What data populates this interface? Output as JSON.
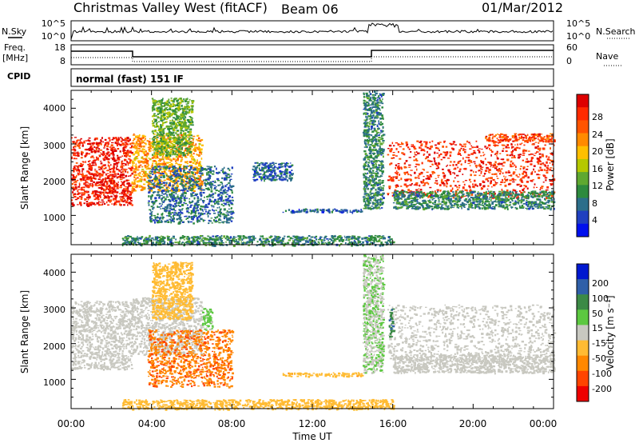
{
  "header": {
    "station": "Christmas Valley West (fitACF)",
    "beam": "Beam 06",
    "date": "01/Mar/2012"
  },
  "nsky": {
    "left_label": "N.Sky",
    "left_ticks": [
      "10^5",
      "10^0"
    ],
    "right_ticks": [
      "10^5",
      "10^0"
    ],
    "right_label": "N.Search"
  },
  "freq": {
    "left_label_line1": "Freq.",
    "left_label_line2": "[MHz]",
    "left_ticks": [
      "18",
      "8"
    ],
    "right_ticks": [
      "60",
      "0"
    ],
    "right_label": "Nave"
  },
  "cpid": {
    "label": "CPID",
    "mode": "normal (fast) 151 IF"
  },
  "power_colorbar": {
    "label": "Power [dB]",
    "ticks": [
      "28",
      "24",
      "20",
      "16",
      "12",
      "8",
      "4"
    ],
    "colors": [
      "#dd0000",
      "#ff2a00",
      "#ff5400",
      "#ff8a00",
      "#ffbf00",
      "#b5c800",
      "#5fa830",
      "#2e8a3e",
      "#2c6e8a",
      "#2040c0",
      "#0010ee"
    ]
  },
  "velocity_colorbar": {
    "label": "Velocity [m s⁻¹]",
    "ticks": [
      "200",
      "100",
      "50",
      "15",
      "-15",
      "-50",
      "-100",
      "-200"
    ],
    "colors": [
      "#0018d0",
      "#2f5fa8",
      "#3c8a46",
      "#5cc840",
      "#c8c8c0",
      "#ffbb33",
      "#ff8800",
      "#ff4400",
      "#ee0000"
    ]
  },
  "axes": {
    "ylabel": "Slant Range [km]",
    "xlabel": "Time UT",
    "yticks": [
      "4000",
      "3000",
      "2000",
      "1000"
    ],
    "xticks": [
      "00:00",
      "04:00",
      "08:00",
      "12:00",
      "16:00",
      "20:00",
      "00:00"
    ]
  },
  "chart_data": [
    {
      "type": "heatmap",
      "title": "Power",
      "xlabel": "Time UT",
      "ylabel": "Slant Range [km]",
      "x_range_hours": [
        0,
        24
      ],
      "y_range_km": [
        180,
        4500
      ],
      "color_label": "Power [dB]",
      "color_range": [
        0,
        30
      ],
      "regions": [
        {
          "t": [
            0.0,
            3.0
          ],
          "r": [
            1300,
            3200
          ],
          "power": 28
        },
        {
          "t": [
            3.0,
            6.5
          ],
          "r": [
            1700,
            3300
          ],
          "power": 20
        },
        {
          "t": [
            4.0,
            6.0
          ],
          "r": [
            2700,
            4300
          ],
          "power": 12
        },
        {
          "t": [
            3.8,
            8.0
          ],
          "r": [
            800,
            2400
          ],
          "power": 6
        },
        {
          "t": [
            9.0,
            11.0
          ],
          "r": [
            2000,
            2500
          ],
          "power": 5
        },
        {
          "t": [
            10.5,
            14.5
          ],
          "r": [
            1100,
            1200
          ],
          "power": 5
        },
        {
          "t": [
            14.5,
            15.5
          ],
          "r": [
            1200,
            4500
          ],
          "power": 8
        },
        {
          "t": [
            15.7,
            24.0
          ],
          "r": [
            1500,
            3100
          ],
          "power": 27
        },
        {
          "t": [
            16.0,
            24.0
          ],
          "r": [
            1200,
            1700
          ],
          "power": 8
        },
        {
          "t": [
            20.5,
            24.0
          ],
          "r": [
            3100,
            3300
          ],
          "power": 26
        },
        {
          "t": [
            2.5,
            16.0
          ],
          "r": [
            180,
            450
          ],
          "power": 8
        }
      ]
    },
    {
      "type": "heatmap",
      "title": "Velocity",
      "xlabel": "Time UT",
      "ylabel": "Slant Range [km]",
      "x_range_hours": [
        0,
        24
      ],
      "y_range_km": [
        180,
        4500
      ],
      "color_label": "Velocity [m s⁻¹]",
      "color_range": [
        -250,
        250
      ],
      "regions": [
        {
          "t": [
            0.0,
            3.0
          ],
          "r": [
            1300,
            3200
          ],
          "velocity": 0
        },
        {
          "t": [
            3.0,
            6.5
          ],
          "r": [
            1700,
            3300
          ],
          "velocity": 0
        },
        {
          "t": [
            4.0,
            6.0
          ],
          "r": [
            2700,
            4300
          ],
          "velocity": -60
        },
        {
          "t": [
            3.8,
            8.0
          ],
          "r": [
            800,
            2400
          ],
          "velocity": -150
        },
        {
          "t": [
            6.5,
            7.0
          ],
          "r": [
            2400,
            3000
          ],
          "velocity": 40
        },
        {
          "t": [
            10.5,
            14.5
          ],
          "r": [
            1100,
            1200
          ],
          "velocity": -80
        },
        {
          "t": [
            14.5,
            15.5
          ],
          "r": [
            1200,
            4500
          ],
          "velocity": 30
        },
        {
          "t": [
            15.7,
            24.0
          ],
          "r": [
            1500,
            3100
          ],
          "velocity": 0
        },
        {
          "t": [
            16.0,
            24.0
          ],
          "r": [
            1200,
            1700
          ],
          "velocity": 0
        },
        {
          "t": [
            15.8,
            16.0
          ],
          "r": [
            2200,
            3000
          ],
          "velocity": 150
        },
        {
          "t": [
            2.5,
            16.0
          ],
          "r": [
            180,
            450
          ],
          "velocity": -60
        }
      ]
    }
  ]
}
